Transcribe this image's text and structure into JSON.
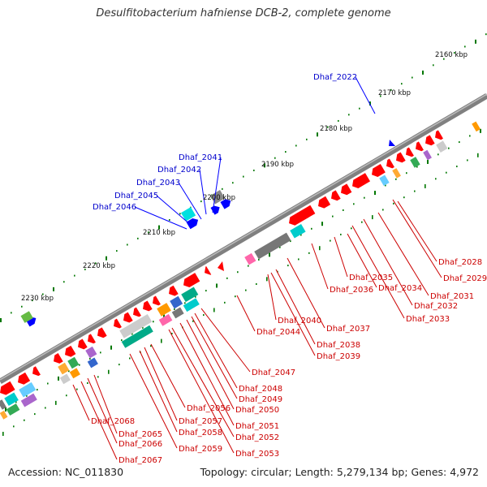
{
  "title": "Desulfitobacterium hafniense DCB-2, complete genome",
  "footer": {
    "accession": "Accession: NC_011830",
    "info": "Topology: circular; Length: 5,279,134 bp; Genes: 4,972"
  },
  "colors": {
    "backbone": "#808080",
    "forward_gene": "#ff0000",
    "reverse_gene": "#0000ff",
    "tick_green": "#007700",
    "label_red": "#cc0000",
    "label_blue": "#0000cc"
  },
  "kbp_labels": [
    "2160 kbp",
    "2170 kbp",
    "2180 kbp",
    "2190 kbp",
    "2200 kbp",
    "2210 kbp",
    "2220 kbp",
    "2230 kbp"
  ],
  "blue_labels": [
    "Dhaf_2022",
    "Dhaf_2041",
    "Dhaf_2042",
    "Dhaf_2043",
    "Dhaf_2045",
    "Dhaf_2046"
  ],
  "red_labels": [
    "Dhaf_2028",
    "Dhaf_2029",
    "Dhaf_2031",
    "Dhaf_2032",
    "Dhaf_2033",
    "Dhaf_2034",
    "Dhaf_2035",
    "Dhaf_2036",
    "Dhaf_2037",
    "Dhaf_2038",
    "Dhaf_2039",
    "Dhaf_2040",
    "Dhaf_2044",
    "Dhaf_2047",
    "Dhaf_2048",
    "Dhaf_2049",
    "Dhaf_2050",
    "Dhaf_2051",
    "Dhaf_2052",
    "Dhaf_2053",
    "Dhaf_2056",
    "Dhaf_2057",
    "Dhaf_2058",
    "Dhaf_2059",
    "Dhaf_2065",
    "Dhaf_2066",
    "Dhaf_2067",
    "Dhaf_2068"
  ]
}
